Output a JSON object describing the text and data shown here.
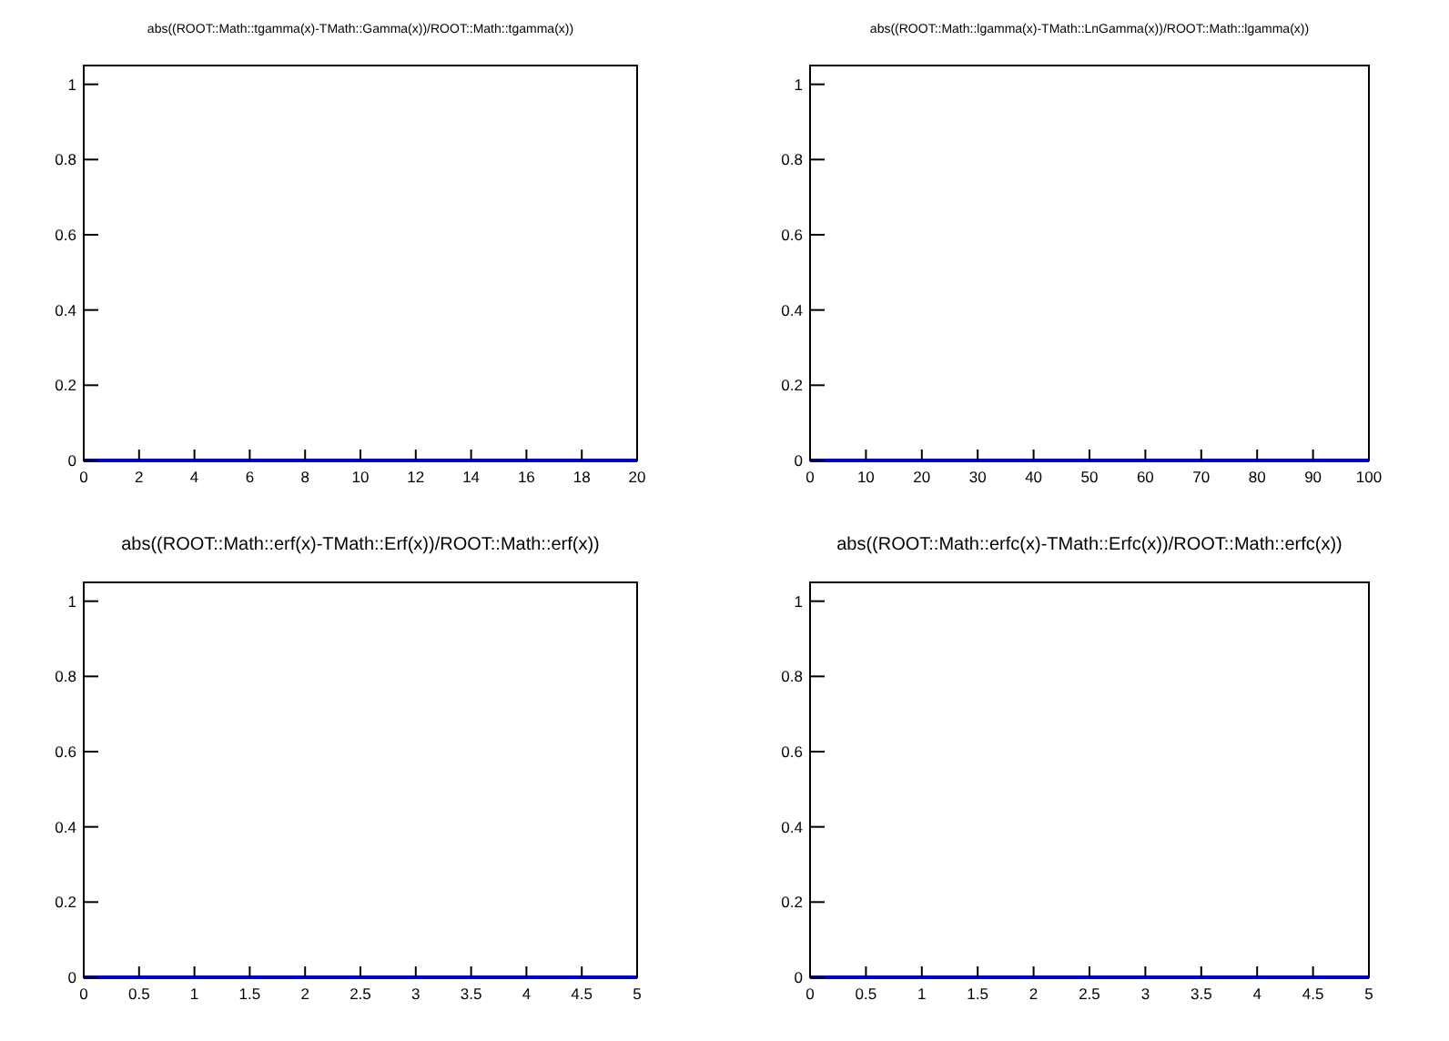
{
  "chart_data": [
    {
      "type": "line",
      "title": "abs((ROOT::Math::tgamma(x)-TMath::Gamma(x))/ROOT::Math::tgamma(x))",
      "x": [
        0,
        20
      ],
      "series": [
        {
          "color": "#0000cc",
          "values": [
            0,
            0
          ]
        }
      ],
      "xlim": [
        0,
        20
      ],
      "xticks": [
        0,
        2,
        4,
        6,
        8,
        10,
        12,
        14,
        16,
        18,
        20
      ],
      "ylim": [
        0,
        1.05
      ],
      "yticks": [
        0,
        0.2,
        0.4,
        0.6,
        0.8,
        1
      ]
    },
    {
      "type": "line",
      "title": "abs((ROOT::Math::lgamma(x)-TMath::LnGamma(x))/ROOT::Math::lgamma(x))",
      "x": [
        0,
        100
      ],
      "series": [
        {
          "color": "#0000cc",
          "values": [
            0,
            0
          ]
        }
      ],
      "xlim": [
        0,
        100
      ],
      "xticks": [
        0,
        10,
        20,
        30,
        40,
        50,
        60,
        70,
        80,
        90,
        100
      ],
      "ylim": [
        0,
        1.05
      ],
      "yticks": [
        0,
        0.2,
        0.4,
        0.6,
        0.8,
        1
      ]
    },
    {
      "type": "line",
      "title": "abs((ROOT::Math::erf(x)-TMath::Erf(x))/ROOT::Math::erf(x))",
      "x": [
        0,
        5
      ],
      "series": [
        {
          "color": "#0000cc",
          "values": [
            0,
            0
          ]
        }
      ],
      "xlim": [
        0,
        5
      ],
      "xticks": [
        0,
        0.5,
        1,
        1.5,
        2,
        2.5,
        3,
        3.5,
        4,
        4.5,
        5
      ],
      "ylim": [
        0,
        1.05
      ],
      "yticks": [
        0,
        0.2,
        0.4,
        0.6,
        0.8,
        1
      ]
    },
    {
      "type": "line",
      "title": "abs((ROOT::Math::erfc(x)-TMath::Erfc(x))/ROOT::Math::erfc(x))",
      "x": [
        0,
        5
      ],
      "series": [
        {
          "color": "#0000cc",
          "values": [
            0,
            0
          ]
        }
      ],
      "xlim": [
        0,
        5
      ],
      "xticks": [
        0,
        0.5,
        1,
        1.5,
        2,
        2.5,
        3,
        3.5,
        4,
        4.5,
        5
      ],
      "ylim": [
        0,
        1.05
      ],
      "yticks": [
        0,
        0.2,
        0.4,
        0.6,
        0.8,
        1
      ]
    }
  ]
}
